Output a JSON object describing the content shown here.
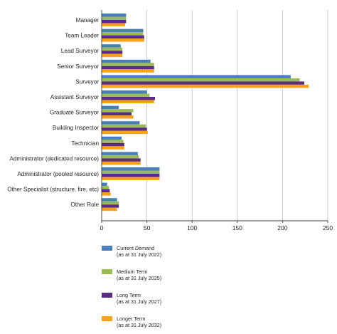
{
  "chart_data": {
    "type": "bar",
    "orientation": "horizontal",
    "categories": [
      "Manager",
      "Team Leader",
      "Lead Surveyor",
      "Senior Surveyor",
      "Surveyor",
      "Assistant Surveyor",
      "Graduate Surveyor",
      "Building Inspector",
      "Technician",
      "Administrator (dedicated resource)",
      "Administrator (pooled resource)",
      "Other Specialist (structure, fire, etc)",
      "Other Role"
    ],
    "series": [
      {
        "name": "Current Demand",
        "sub": "(as at 31 July 2022)",
        "color": "#4a7ebb",
        "values": [
          27,
          46,
          21,
          54,
          209,
          50,
          19,
          42,
          22,
          40,
          64,
          6,
          17
        ]
      },
      {
        "name": "Medium Term",
        "sub": "(as at 31 July 2025)",
        "color": "#9bbb59",
        "values": [
          27,
          46,
          23,
          58,
          219,
          53,
          35,
          49,
          24,
          41,
          64,
          8,
          19
        ]
      },
      {
        "name": "Long Term",
        "sub": "(as at 31 July 2027)",
        "color": "#5b2c83",
        "values": [
          27,
          47,
          23,
          58,
          224,
          59,
          33,
          50,
          25,
          43,
          64,
          9,
          19
        ]
      },
      {
        "name": "Longer Term",
        "sub": "(as at 31 July 2032)",
        "color": "#f7a21b",
        "values": [
          26,
          47,
          23,
          58,
          229,
          58,
          35,
          51,
          25,
          43,
          64,
          10,
          17
        ]
      }
    ],
    "xlim": [
      0,
      250
    ],
    "xticks": [
      0,
      50,
      100,
      150,
      200,
      250
    ],
    "grid": "vertical",
    "legend_position": "bottom"
  }
}
